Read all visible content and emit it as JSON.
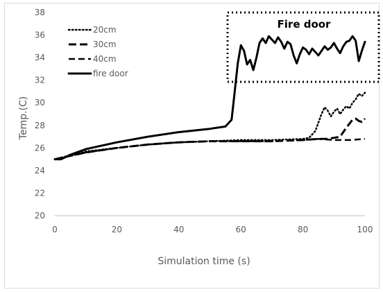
{
  "chart_data": {
    "type": "line",
    "title": "",
    "xlabel": "Simulation time (s)",
    "ylabel": "Temp.(C)",
    "xlim": [
      0,
      100
    ],
    "ylim": [
      20,
      38
    ],
    "x_ticks": [
      "0",
      "20",
      "40",
      "60",
      "80",
      "100"
    ],
    "y_ticks": [
      "20",
      "22",
      "24",
      "26",
      "28",
      "30",
      "32",
      "34",
      "36",
      "38"
    ],
    "grid": false,
    "legend_position": "top-left",
    "annotation": "Fire  door",
    "series": [
      {
        "name": "20cm",
        "dash": "dotted",
        "x": [
          0,
          10,
          20,
          30,
          40,
          50,
          60,
          70,
          80,
          82,
          84,
          86,
          87,
          88,
          89,
          90,
          91,
          92,
          93,
          94,
          95,
          96,
          97,
          98,
          99,
          100
        ],
        "y": [
          25.0,
          25.7,
          26.0,
          26.3,
          26.5,
          26.6,
          26.7,
          26.7,
          26.8,
          26.9,
          27.5,
          29.0,
          29.6,
          29.3,
          28.8,
          29.2,
          29.5,
          29.0,
          29.4,
          29.7,
          29.5,
          30.0,
          30.3,
          30.8,
          30.6,
          30.9
        ]
      },
      {
        "name": "30cm",
        "dash": "long-dash",
        "x": [
          0,
          10,
          20,
          30,
          40,
          50,
          60,
          70,
          80,
          85,
          88,
          90,
          92,
          94,
          96,
          97,
          98,
          99,
          100
        ],
        "y": [
          25.0,
          25.6,
          26.0,
          26.3,
          26.5,
          26.6,
          26.6,
          26.6,
          26.7,
          26.8,
          26.8,
          26.9,
          27.0,
          27.8,
          28.5,
          28.6,
          28.4,
          28.3,
          28.6
        ]
      },
      {
        "name": "40cm",
        "dash": "dash",
        "x": [
          0,
          10,
          20,
          30,
          40,
          50,
          60,
          70,
          80,
          85,
          90,
          95,
          100
        ],
        "y": [
          25.0,
          25.6,
          26.0,
          26.3,
          26.5,
          26.6,
          26.6,
          26.6,
          26.7,
          26.8,
          26.7,
          26.7,
          26.8
        ]
      },
      {
        "name": "fire door",
        "dash": "solid",
        "x": [
          0,
          2,
          5,
          10,
          20,
          30,
          40,
          50,
          55,
          57,
          58,
          59,
          60,
          61,
          62,
          63,
          64,
          65,
          66,
          67,
          68,
          69,
          70,
          71,
          72,
          73,
          74,
          75,
          76,
          77,
          78,
          79,
          80,
          81,
          82,
          83,
          84,
          85,
          86,
          87,
          88,
          89,
          90,
          91,
          92,
          93,
          94,
          95,
          96,
          97,
          98,
          99,
          100
        ],
        "y": [
          25.0,
          25.0,
          25.4,
          25.9,
          26.5,
          27.0,
          27.4,
          27.7,
          27.9,
          28.5,
          31.0,
          33.5,
          35.1,
          34.6,
          33.4,
          33.8,
          32.9,
          34.0,
          35.3,
          35.7,
          35.3,
          35.9,
          35.6,
          35.3,
          35.8,
          35.4,
          34.8,
          35.4,
          35.2,
          34.2,
          33.5,
          34.3,
          34.9,
          34.7,
          34.3,
          34.8,
          34.5,
          34.2,
          34.6,
          35.0,
          34.7,
          34.9,
          35.3,
          34.8,
          34.4,
          35.0,
          35.4,
          35.5,
          35.9,
          35.5,
          33.7,
          34.6,
          35.4
        ]
      }
    ]
  }
}
